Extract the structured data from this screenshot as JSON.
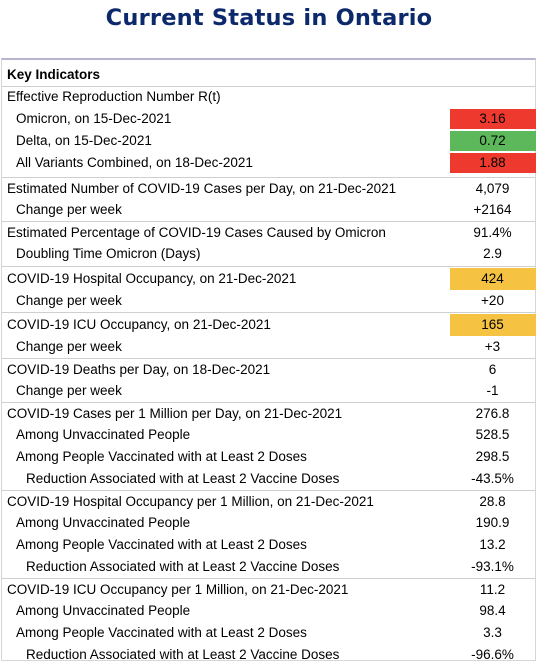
{
  "title": "Current Status in Ontario",
  "colors": {
    "red": "#ee3a2e",
    "green": "#5cb85a",
    "amber": "#f5c242",
    "title": "#0c2a6b"
  },
  "rows": [
    {
      "label": "Key Indicators",
      "value": "",
      "indent": 0,
      "bold": true
    },
    {
      "label": "Effective Reproduction Number R(t)",
      "value": "",
      "indent": 0
    },
    {
      "label": "Omicron, on 15-Dec-2021",
      "value": "3.16",
      "indent": 1,
      "highlight": "red"
    },
    {
      "label": "Delta, on 15-Dec-2021",
      "value": "0.72",
      "indent": 1,
      "highlight": "green"
    },
    {
      "label": "All Variants Combined, on 18-Dec-2021",
      "value": "1.88",
      "indent": 1,
      "highlight": "red"
    },
    {
      "label": "Estimated Number of COVID-19 Cases per Day, on 21-Dec-2021",
      "value": "4,079",
      "indent": 0
    },
    {
      "label": "Change per week",
      "value": "+2164",
      "indent": 1
    },
    {
      "label": "Estimated Percentage of COVID-19 Cases Caused by Omicron",
      "value": "91.4%",
      "indent": 0
    },
    {
      "label": "Doubling Time Omicron (Days)",
      "value": "2.9",
      "indent": 1
    },
    {
      "label": "COVID-19 Hospital Occupancy, on 21-Dec-2021",
      "value": "424",
      "indent": 0,
      "highlight": "amber"
    },
    {
      "label": "Change per week",
      "value": "+20",
      "indent": 1
    },
    {
      "label": "COVID-19 ICU Occupancy, on 21-Dec-2021",
      "value": "165",
      "indent": 0,
      "highlight": "amber"
    },
    {
      "label": "Change per week",
      "value": "+3",
      "indent": 1
    },
    {
      "label": "COVID-19 Deaths per Day, on 18-Dec-2021",
      "value": "6",
      "indent": 0
    },
    {
      "label": "Change per week",
      "value": "-1",
      "indent": 1
    },
    {
      "label": "COVID-19 Cases per 1 Million per Day, on 21-Dec-2021",
      "value": "276.8",
      "indent": 0
    },
    {
      "label": "Among Unvaccinated People",
      "value": "528.5",
      "indent": 1
    },
    {
      "label": "Among People Vaccinated with at Least 2 Doses",
      "value": "298.5",
      "indent": 1
    },
    {
      "label": "Reduction Associated with at Least 2 Vaccine Doses",
      "value": "-43.5%",
      "indent": 2
    },
    {
      "label": "COVID-19 Hospital Occupancy per 1 Million, on 21-Dec-2021",
      "value": "28.8",
      "indent": 0
    },
    {
      "label": "Among Unvaccinated People",
      "value": "190.9",
      "indent": 1
    },
    {
      "label": "Among People Vaccinated with at Least 2 Doses",
      "value": "13.2",
      "indent": 1
    },
    {
      "label": "Reduction Associated with at Least 2 Vaccine Doses",
      "value": "-93.1%",
      "indent": 2
    },
    {
      "label": "COVID-19 ICU Occupancy per 1 Million, on 21-Dec-2021",
      "value": "11.2",
      "indent": 0
    },
    {
      "label": "Among Unvaccinated People",
      "value": "98.4",
      "indent": 1
    },
    {
      "label": "Among People Vaccinated with at Least 2 Doses",
      "value": "3.3",
      "indent": 1
    },
    {
      "label": "Reduction Associated with at Least 2 Vaccine Doses",
      "value": "-96.6%",
      "indent": 2
    }
  ]
}
